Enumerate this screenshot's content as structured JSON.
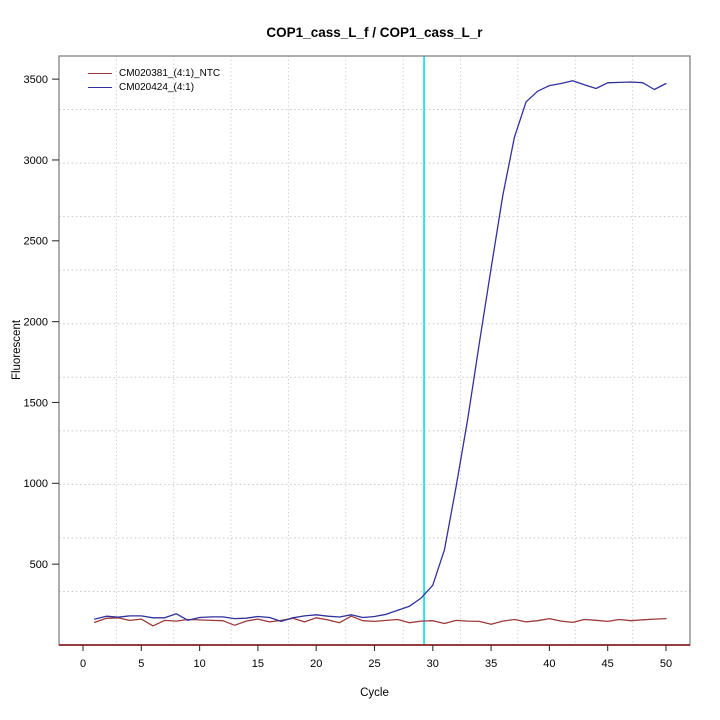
{
  "title": "COP1_cass_L_f / COP1_cass_L_r",
  "chart_data": {
    "type": "line",
    "title": "COP1_cass_L_f / COP1_cass_L_r",
    "xlabel": "Cycle",
    "ylabel": "Fluorescent",
    "x": [
      1,
      2,
      3,
      4,
      5,
      6,
      7,
      8,
      9,
      10,
      11,
      12,
      13,
      14,
      15,
      16,
      17,
      18,
      19,
      20,
      21,
      22,
      23,
      24,
      25,
      26,
      27,
      28,
      29,
      30,
      31,
      32,
      33,
      34,
      35,
      36,
      37,
      38,
      39,
      40,
      41,
      42,
      43,
      44,
      45,
      46,
      47,
      48,
      49,
      50
    ],
    "series": [
      {
        "name": "CM020381_(4:1)_NTC",
        "color": "#9C3A3A",
        "values": [
          140,
          165,
          168,
          152,
          160,
          118,
          152,
          148,
          158,
          155,
          152,
          150,
          122,
          148,
          160,
          143,
          152,
          165,
          143,
          168,
          155,
          138,
          178,
          150,
          146,
          152,
          158,
          138,
          148,
          150,
          133,
          152,
          148,
          146,
          128,
          148,
          158,
          143,
          150,
          163,
          148,
          140,
          158,
          153,
          146,
          158,
          150,
          156,
          160,
          163
        ]
      },
      {
        "name": "CM020424_(4:1)",
        "color": "#31319C",
        "values": [
          160,
          178,
          172,
          180,
          180,
          168,
          168,
          193,
          153,
          170,
          174,
          174,
          163,
          166,
          176,
          170,
          146,
          168,
          180,
          187,
          178,
          173,
          187,
          170,
          176,
          190,
          215,
          240,
          290,
          370,
          590,
          980,
          1400,
          1870,
          2330,
          2780,
          3140,
          3360,
          3425,
          3460,
          3473,
          3490,
          3465,
          3442,
          3477,
          3480,
          3482,
          3478,
          3436,
          3473
        ]
      }
    ],
    "threshold_line": {
      "x": 29.25,
      "color": "#00E0EE"
    },
    "zero_baseline": {
      "y": 0,
      "color": "#8B2424"
    },
    "x_ticks": [
      0,
      5,
      10,
      15,
      20,
      25,
      30,
      35,
      40,
      45,
      50
    ],
    "y_ticks": [
      500,
      1000,
      1500,
      2000,
      2500,
      3000,
      3500
    ],
    "xlim": [
      -2.06,
      52.06
    ],
    "ylim": [
      0,
      3643
    ],
    "grid": {
      "divisions_x": 11,
      "divisions_y": 11,
      "color": "#C9C9C9",
      "style": "dotted"
    },
    "colors": {
      "box": "#787878",
      "tick": "#333333",
      "tick_label": "#000000"
    },
    "legend": {
      "position": "top-left"
    }
  }
}
